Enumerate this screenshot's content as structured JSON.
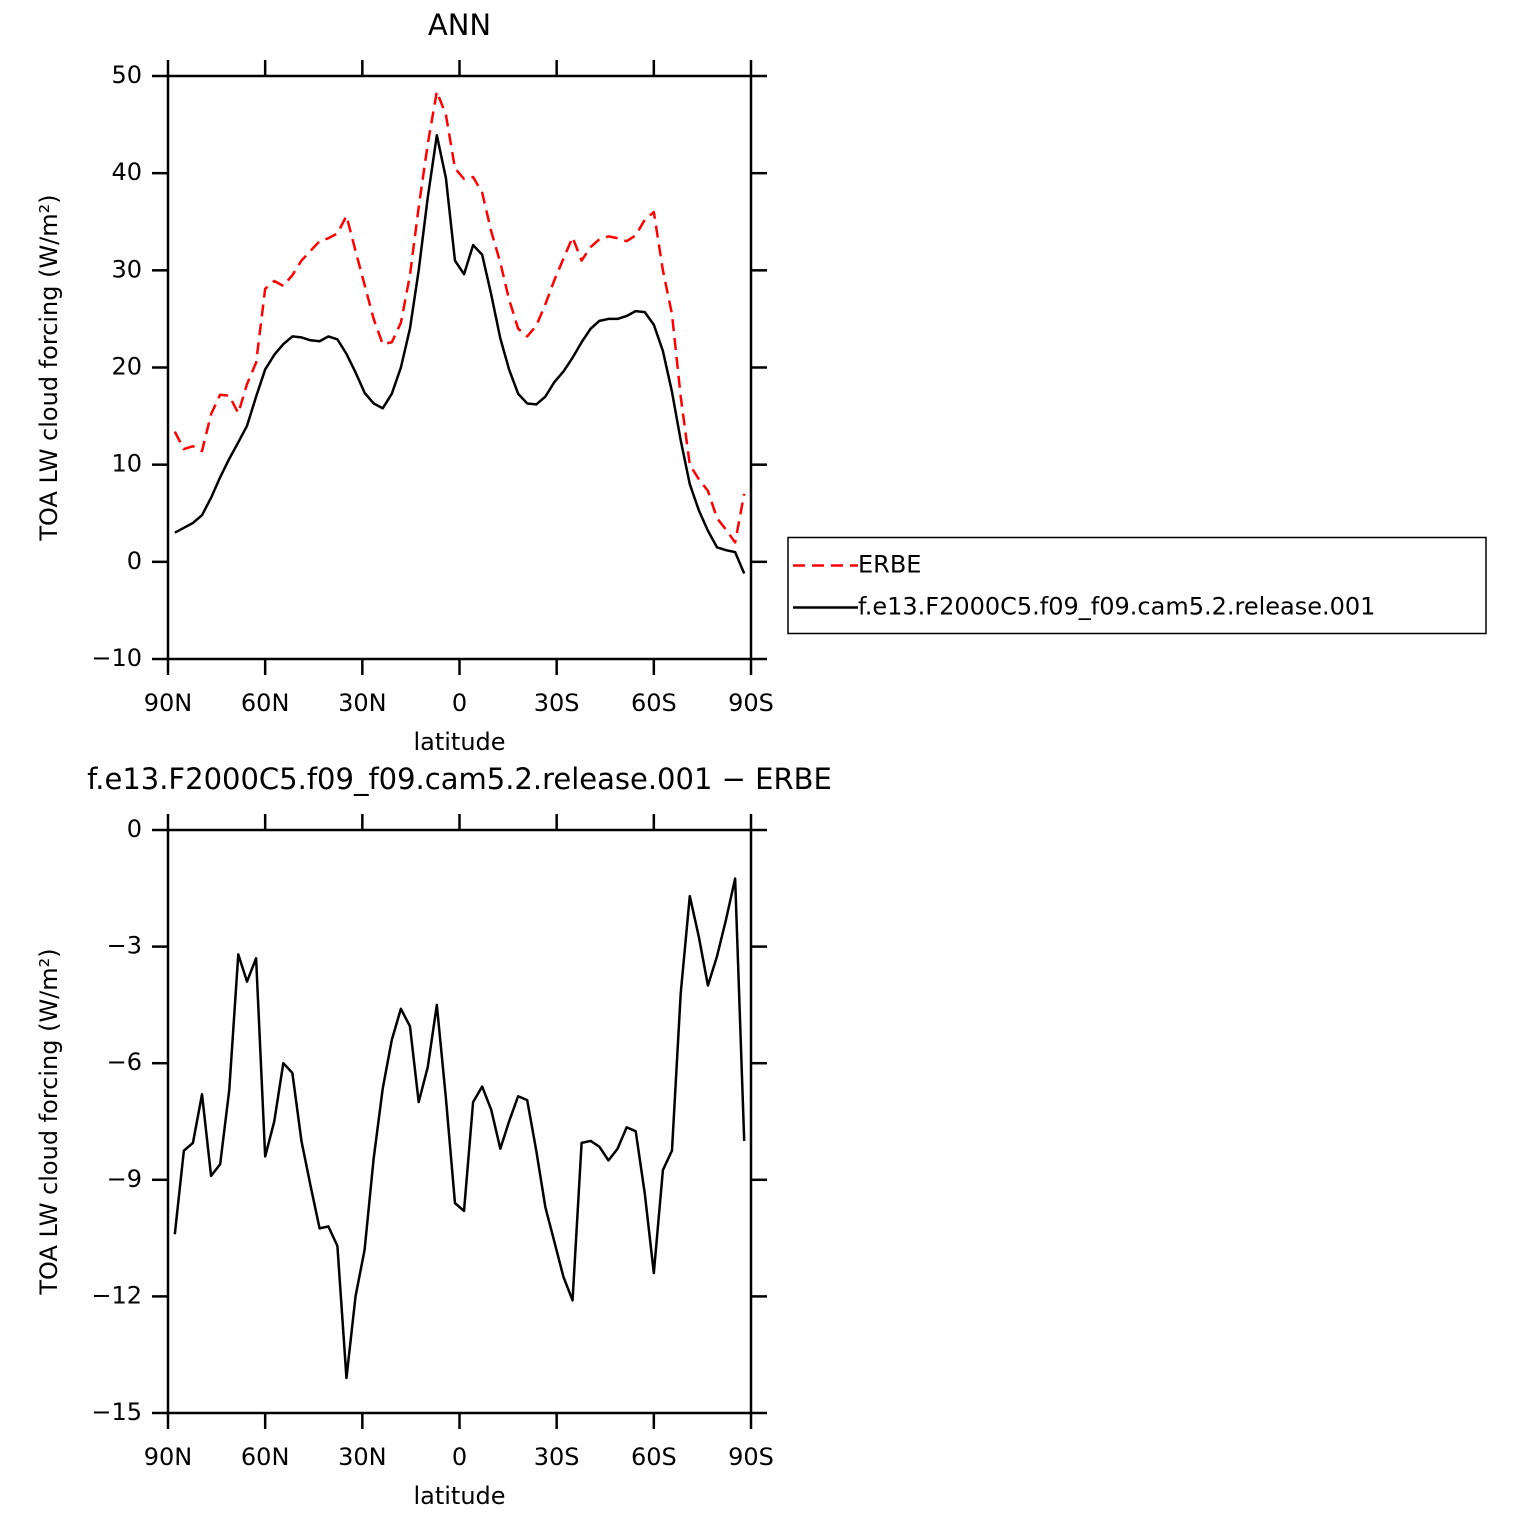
{
  "chart_data": [
    {
      "type": "line",
      "title": "ANN",
      "x_label": "latitude",
      "y_label": "TOA LW cloud forcing (W/m²)",
      "x": [
        87.9,
        85.1,
        82.3,
        79.5,
        76.7,
        73.9,
        71.1,
        68.3,
        65.6,
        62.8,
        60.0,
        57.2,
        54.4,
        51.6,
        48.8,
        46.0,
        43.2,
        40.5,
        37.7,
        34.9,
        32.1,
        29.3,
        26.5,
        23.7,
        20.9,
        18.1,
        15.3,
        12.6,
        9.8,
        7.0,
        4.2,
        1.4,
        -1.4,
        -4.2,
        -7.0,
        -9.8,
        -12.6,
        -15.3,
        -18.1,
        -20.9,
        -23.7,
        -26.5,
        -29.3,
        -32.1,
        -34.9,
        -37.7,
        -40.5,
        -43.2,
        -46.0,
        -48.8,
        -51.6,
        -54.4,
        -57.2,
        -60.0,
        -62.8,
        -65.6,
        -68.3,
        -71.1,
        -73.9,
        -76.7,
        -79.5,
        -82.3,
        -85.1,
        -87.9
      ],
      "series": [
        {
          "name": "ERBE",
          "color": "#ff0000",
          "dashed": true,
          "values": [
            13.4,
            11.6,
            11.9,
            11.4,
            15.2,
            17.2,
            17.1,
            15.3,
            18.3,
            20.5,
            28.1,
            28.9,
            28.4,
            29.5,
            31.0,
            32.0,
            33.0,
            33.3,
            33.8,
            35.6,
            32.0,
            28.5,
            25.0,
            22.4,
            22.6,
            24.6,
            29.5,
            36.5,
            43.0,
            48.4,
            46.0,
            40.5,
            39.4,
            39.6,
            38.0,
            34.0,
            30.8,
            27.0,
            24.0,
            23.2,
            24.3,
            26.5,
            29.0,
            31.2,
            33.4,
            31.0,
            32.4,
            33.2,
            33.5,
            33.3,
            33.0,
            33.6,
            35.2,
            36.0,
            30.0,
            25.5,
            17.0,
            10.0,
            8.5,
            7.3,
            4.5,
            3.3,
            2.0,
            7.0
          ]
        },
        {
          "name": "f.e13.F2000C5.f09_f09.cam5.2.release.001",
          "color": "#000000",
          "dashed": false,
          "values": [
            3.0,
            3.5,
            4.0,
            4.8,
            6.6,
            8.7,
            10.6,
            12.3,
            14.0,
            17.0,
            19.8,
            21.3,
            22.4,
            23.2,
            23.1,
            22.8,
            22.7,
            23.2,
            22.9,
            21.4,
            19.5,
            17.4,
            16.3,
            15.8,
            17.3,
            20.0,
            24.0,
            30.0,
            37.5,
            43.9,
            39.5,
            31.0,
            29.6,
            32.6,
            31.6,
            27.5,
            23.0,
            19.8,
            17.3,
            16.3,
            16.2,
            17.0,
            18.5,
            19.6,
            21.0,
            22.6,
            24.0,
            24.8,
            25.0,
            25.0,
            25.3,
            25.8,
            25.7,
            24.4,
            21.7,
            17.5,
            12.5,
            8.0,
            5.3,
            3.2,
            1.5,
            1.2,
            1.0,
            -1.2
          ]
        }
      ],
      "xlim": [
        90,
        -90
      ],
      "xticks": [
        {
          "value": 90,
          "label": "90N"
        },
        {
          "value": 60,
          "label": "60N"
        },
        {
          "value": 30,
          "label": "30N"
        },
        0,
        {
          "value": -30,
          "label": "30S"
        },
        {
          "value": -60,
          "label": "60S"
        },
        {
          "value": -90,
          "label": "90S"
        }
      ],
      "ylim": [
        -10,
        50
      ],
      "yticks": [
        {
          "value": -10,
          "label": "−10"
        },
        0,
        10,
        20,
        30,
        40,
        50
      ],
      "legend": "right"
    },
    {
      "type": "line",
      "title": "f.e13.F2000C5.f09_f09.cam5.2.release.001 − ERBE",
      "x_label": "latitude",
      "y_label": "TOA LW cloud forcing (W/m²)",
      "x": [
        87.9,
        85.1,
        82.3,
        79.5,
        76.7,
        73.9,
        71.1,
        68.3,
        65.6,
        62.8,
        60.0,
        57.2,
        54.4,
        51.6,
        48.8,
        46.0,
        43.2,
        40.5,
        37.7,
        34.9,
        32.1,
        29.3,
        26.5,
        23.7,
        20.9,
        18.1,
        15.3,
        12.6,
        9.8,
        7.0,
        4.2,
        1.4,
        -1.4,
        -4.2,
        -7.0,
        -9.8,
        -12.6,
        -15.3,
        -18.1,
        -20.9,
        -23.7,
        -26.5,
        -29.3,
        -32.1,
        -34.9,
        -37.7,
        -40.5,
        -43.2,
        -46.0,
        -48.8,
        -51.6,
        -54.4,
        -57.2,
        -60.0,
        -62.8,
        -65.6,
        -68.3,
        -71.1,
        -73.9,
        -76.7,
        -79.5,
        -82.3,
        -85.1,
        -87.9
      ],
      "series": [
        {
          "color": "#000000",
          "dashed": false,
          "values": [
            -10.4,
            -8.25,
            -8.05,
            -6.8,
            -8.9,
            -8.6,
            -6.7,
            -3.2,
            -3.9,
            -3.3,
            -8.4,
            -7.5,
            -6.0,
            -6.25,
            -8.0,
            -9.15,
            -10.25,
            -10.2,
            -10.7,
            -14.1,
            -12.0,
            -10.8,
            -8.45,
            -6.65,
            -5.4,
            -4.6,
            -5.05,
            -7.0,
            -6.1,
            -4.5,
            -6.9,
            -9.6,
            -9.8,
            -7.0,
            -6.6,
            -7.2,
            -8.2,
            -7.5,
            -6.85,
            -6.95,
            -8.25,
            -9.7,
            -10.6,
            -11.5,
            -12.1,
            -8.05,
            -8.0,
            -8.15,
            -8.5,
            -8.2,
            -7.65,
            -7.75,
            -9.35,
            -11.4,
            -8.75,
            -8.25,
            -4.2,
            -1.7,
            -2.75,
            -4.0,
            -3.25,
            -2.3,
            -1.25,
            -8.0
          ]
        }
      ],
      "xlim": [
        90,
        -90
      ],
      "xticks": [
        {
          "value": 90,
          "label": "90N"
        },
        {
          "value": 60,
          "label": "60N"
        },
        {
          "value": 30,
          "label": "30N"
        },
        0,
        {
          "value": -30,
          "label": "30S"
        },
        {
          "value": -60,
          "label": "60S"
        },
        {
          "value": -90,
          "label": "90S"
        }
      ],
      "ylim": [
        -15,
        0
      ],
      "yticks": [
        {
          "value": -15,
          "label": "−15"
        },
        {
          "value": -12,
          "label": "−12"
        },
        {
          "value": -9,
          "label": "−9"
        },
        {
          "value": -6,
          "label": "−6"
        },
        {
          "value": -3,
          "label": "−3"
        },
        0
      ]
    }
  ]
}
